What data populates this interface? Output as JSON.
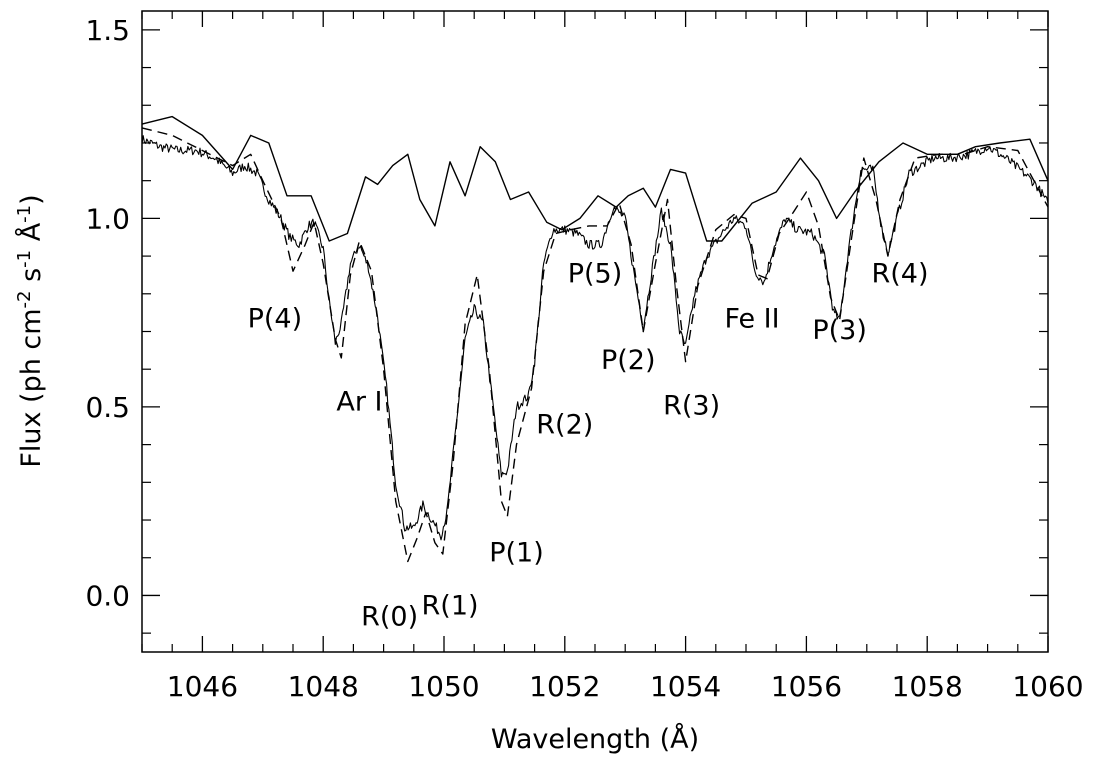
{
  "chart_data": {
    "type": "line",
    "title": "",
    "xlabel": "Wavelength (Å)",
    "ylabel_parts": {
      "main": "Flux (ph cm",
      "exp1": "-2",
      "s": " s",
      "exp2": "-1",
      "A": " Å",
      "exp3": "-1",
      "close": ")"
    },
    "xlim": [
      1045,
      1060
    ],
    "ylim": [
      -0.15,
      1.55
    ],
    "xticks": [
      1046,
      1048,
      1050,
      1052,
      1054,
      1056,
      1058,
      1060
    ],
    "xtick_labels": [
      "1046",
      "1048",
      "1050",
      "1052",
      "1054",
      "1056",
      "1058",
      "1060"
    ],
    "yticks": [
      0.0,
      0.5,
      1.0,
      1.5
    ],
    "ytick_labels": [
      "0.0",
      "0.5",
      "1.0",
      "1.5"
    ],
    "grid": false,
    "series": [
      {
        "style": "solid-noisy",
        "points": [
          [
            1045.0,
            1.21
          ],
          [
            1045.3,
            1.19
          ],
          [
            1045.6,
            1.18
          ],
          [
            1045.9,
            1.18
          ],
          [
            1046.2,
            1.16
          ],
          [
            1046.5,
            1.12
          ],
          [
            1046.7,
            1.14
          ],
          [
            1046.9,
            1.12
          ],
          [
            1047.1,
            1.05
          ],
          [
            1047.3,
            1.0
          ],
          [
            1047.45,
            0.95
          ],
          [
            1047.6,
            0.93
          ],
          [
            1047.75,
            0.98
          ],
          [
            1047.85,
            0.99
          ],
          [
            1048.0,
            0.92
          ],
          [
            1048.1,
            0.78
          ],
          [
            1048.2,
            0.67
          ],
          [
            1048.3,
            0.72
          ],
          [
            1048.45,
            0.88
          ],
          [
            1048.6,
            0.93
          ],
          [
            1048.75,
            0.87
          ],
          [
            1048.9,
            0.74
          ],
          [
            1049.05,
            0.55
          ],
          [
            1049.2,
            0.3
          ],
          [
            1049.35,
            0.18
          ],
          [
            1049.5,
            0.18
          ],
          [
            1049.65,
            0.24
          ],
          [
            1049.8,
            0.2
          ],
          [
            1049.95,
            0.16
          ],
          [
            1050.05,
            0.22
          ],
          [
            1050.2,
            0.45
          ],
          [
            1050.35,
            0.68
          ],
          [
            1050.5,
            0.76
          ],
          [
            1050.65,
            0.72
          ],
          [
            1050.8,
            0.52
          ],
          [
            1050.95,
            0.32
          ],
          [
            1051.05,
            0.33
          ],
          [
            1051.2,
            0.5
          ],
          [
            1051.4,
            0.53
          ],
          [
            1051.5,
            0.62
          ],
          [
            1051.65,
            0.88
          ],
          [
            1051.8,
            0.97
          ],
          [
            1052.0,
            0.97
          ],
          [
            1052.2,
            0.96
          ],
          [
            1052.4,
            0.93
          ],
          [
            1052.6,
            0.93
          ],
          [
            1052.8,
            1.03
          ],
          [
            1053.0,
            1.0
          ],
          [
            1053.15,
            0.85
          ],
          [
            1053.3,
            0.71
          ],
          [
            1053.45,
            0.87
          ],
          [
            1053.6,
            1.02
          ],
          [
            1053.75,
            0.93
          ],
          [
            1053.9,
            0.7
          ],
          [
            1054.0,
            0.66
          ],
          [
            1054.15,
            0.8
          ],
          [
            1054.35,
            0.9
          ],
          [
            1054.6,
            0.96
          ],
          [
            1054.8,
            1.0
          ],
          [
            1055.0,
            0.98
          ],
          [
            1055.15,
            0.86
          ],
          [
            1055.3,
            0.83
          ],
          [
            1055.45,
            0.92
          ],
          [
            1055.65,
            1.0
          ],
          [
            1055.85,
            0.97
          ],
          [
            1056.1,
            0.96
          ],
          [
            1056.3,
            0.9
          ],
          [
            1056.45,
            0.75
          ],
          [
            1056.55,
            0.73
          ],
          [
            1056.7,
            0.92
          ],
          [
            1056.9,
            1.13
          ],
          [
            1057.1,
            1.13
          ],
          [
            1057.25,
            0.97
          ],
          [
            1057.35,
            0.91
          ],
          [
            1057.5,
            1.0
          ],
          [
            1057.7,
            1.12
          ],
          [
            1057.9,
            1.14
          ],
          [
            1058.1,
            1.16
          ],
          [
            1058.4,
            1.16
          ],
          [
            1058.7,
            1.17
          ],
          [
            1059.0,
            1.19
          ],
          [
            1059.3,
            1.16
          ],
          [
            1059.6,
            1.12
          ],
          [
            1059.8,
            1.09
          ],
          [
            1060.0,
            1.04
          ]
        ]
      },
      {
        "style": "dashed",
        "points": [
          [
            1045.0,
            1.24
          ],
          [
            1045.5,
            1.22
          ],
          [
            1046.0,
            1.18
          ],
          [
            1046.5,
            1.14
          ],
          [
            1046.8,
            1.17
          ],
          [
            1047.0,
            1.1
          ],
          [
            1047.3,
            1.0
          ],
          [
            1047.5,
            0.86
          ],
          [
            1047.7,
            0.93
          ],
          [
            1047.85,
            0.99
          ],
          [
            1048.0,
            0.88
          ],
          [
            1048.2,
            0.68
          ],
          [
            1048.3,
            0.63
          ],
          [
            1048.45,
            0.85
          ],
          [
            1048.6,
            0.94
          ],
          [
            1048.8,
            0.86
          ],
          [
            1049.0,
            0.6
          ],
          [
            1049.2,
            0.25
          ],
          [
            1049.4,
            0.09
          ],
          [
            1049.55,
            0.15
          ],
          [
            1049.7,
            0.22
          ],
          [
            1049.85,
            0.14
          ],
          [
            1049.98,
            0.11
          ],
          [
            1050.15,
            0.35
          ],
          [
            1050.35,
            0.72
          ],
          [
            1050.55,
            0.85
          ],
          [
            1050.75,
            0.6
          ],
          [
            1050.95,
            0.25
          ],
          [
            1051.05,
            0.21
          ],
          [
            1051.2,
            0.4
          ],
          [
            1051.45,
            0.55
          ],
          [
            1051.65,
            0.86
          ],
          [
            1051.85,
            0.96
          ],
          [
            1052.1,
            0.97
          ],
          [
            1052.4,
            0.98
          ],
          [
            1052.7,
            0.98
          ],
          [
            1052.9,
            1.04
          ],
          [
            1053.1,
            0.93
          ],
          [
            1053.3,
            0.7
          ],
          [
            1053.5,
            0.88
          ],
          [
            1053.7,
            1.05
          ],
          [
            1053.85,
            0.82
          ],
          [
            1054.0,
            0.62
          ],
          [
            1054.2,
            0.82
          ],
          [
            1054.5,
            0.97
          ],
          [
            1054.8,
            1.01
          ],
          [
            1055.0,
            1.0
          ],
          [
            1055.2,
            0.85
          ],
          [
            1055.35,
            0.84
          ],
          [
            1055.55,
            0.96
          ],
          [
            1055.8,
            1.02
          ],
          [
            1056.0,
            1.07
          ],
          [
            1056.2,
            0.98
          ],
          [
            1056.4,
            0.79
          ],
          [
            1056.55,
            0.73
          ],
          [
            1056.75,
            0.95
          ],
          [
            1056.95,
            1.16
          ],
          [
            1057.15,
            1.05
          ],
          [
            1057.35,
            0.9
          ],
          [
            1057.55,
            1.05
          ],
          [
            1057.8,
            1.16
          ],
          [
            1058.2,
            1.17
          ],
          [
            1058.6,
            1.17
          ],
          [
            1059.0,
            1.19
          ],
          [
            1059.5,
            1.18
          ],
          [
            1060.0,
            1.03
          ]
        ]
      },
      {
        "style": "solid-smooth",
        "points": [
          [
            1045.0,
            1.25
          ],
          [
            1045.5,
            1.27
          ],
          [
            1046.0,
            1.22
          ],
          [
            1046.5,
            1.13
          ],
          [
            1046.8,
            1.22
          ],
          [
            1047.1,
            1.2
          ],
          [
            1047.4,
            1.06
          ],
          [
            1047.8,
            1.06
          ],
          [
            1048.1,
            0.94
          ],
          [
            1048.4,
            0.96
          ],
          [
            1048.7,
            1.11
          ],
          [
            1048.9,
            1.09
          ],
          [
            1049.15,
            1.14
          ],
          [
            1049.4,
            1.17
          ],
          [
            1049.6,
            1.05
          ],
          [
            1049.85,
            0.98
          ],
          [
            1050.1,
            1.15
          ],
          [
            1050.35,
            1.06
          ],
          [
            1050.6,
            1.19
          ],
          [
            1050.85,
            1.15
          ],
          [
            1051.1,
            1.05
          ],
          [
            1051.4,
            1.07
          ],
          [
            1051.7,
            0.99
          ],
          [
            1051.95,
            0.97
          ],
          [
            1052.25,
            1.0
          ],
          [
            1052.55,
            1.06
          ],
          [
            1052.85,
            1.03
          ],
          [
            1053.05,
            1.06
          ],
          [
            1053.3,
            1.08
          ],
          [
            1053.5,
            1.03
          ],
          [
            1053.75,
            1.13
          ],
          [
            1054.0,
            1.12
          ],
          [
            1054.35,
            0.94
          ],
          [
            1054.6,
            0.94
          ],
          [
            1055.1,
            1.04
          ],
          [
            1055.5,
            1.07
          ],
          [
            1055.9,
            1.16
          ],
          [
            1056.2,
            1.1
          ],
          [
            1056.5,
            1.0
          ],
          [
            1056.8,
            1.07
          ],
          [
            1057.2,
            1.15
          ],
          [
            1057.6,
            1.2
          ],
          [
            1058.0,
            1.17
          ],
          [
            1058.5,
            1.17
          ],
          [
            1058.8,
            1.19
          ],
          [
            1059.2,
            1.2
          ],
          [
            1059.7,
            1.21
          ],
          [
            1060.0,
            1.1
          ]
        ]
      }
    ],
    "annotations": [
      {
        "text": "P(4)",
        "x": 1047.2,
        "y": 0.71
      },
      {
        "text": "Ar I",
        "x": 1048.6,
        "y": 0.49
      },
      {
        "text": "R(0)",
        "x": 1049.1,
        "y": -0.08
      },
      {
        "text": "R(1)",
        "x": 1050.1,
        "y": -0.05
      },
      {
        "text": "P(1)",
        "x": 1051.2,
        "y": 0.09
      },
      {
        "text": "R(2)",
        "x": 1052.0,
        "y": 0.43
      },
      {
        "text": "P(5)",
        "x": 1052.5,
        "y": 0.83
      },
      {
        "text": "P(2)",
        "x": 1053.05,
        "y": 0.6
      },
      {
        "text": "R(3)",
        "x": 1054.1,
        "y": 0.48
      },
      {
        "text": "Fe II",
        "x": 1055.1,
        "y": 0.71
      },
      {
        "text": "P(3)",
        "x": 1056.55,
        "y": 0.68
      },
      {
        "text": "R(4)",
        "x": 1057.55,
        "y": 0.83
      }
    ]
  }
}
